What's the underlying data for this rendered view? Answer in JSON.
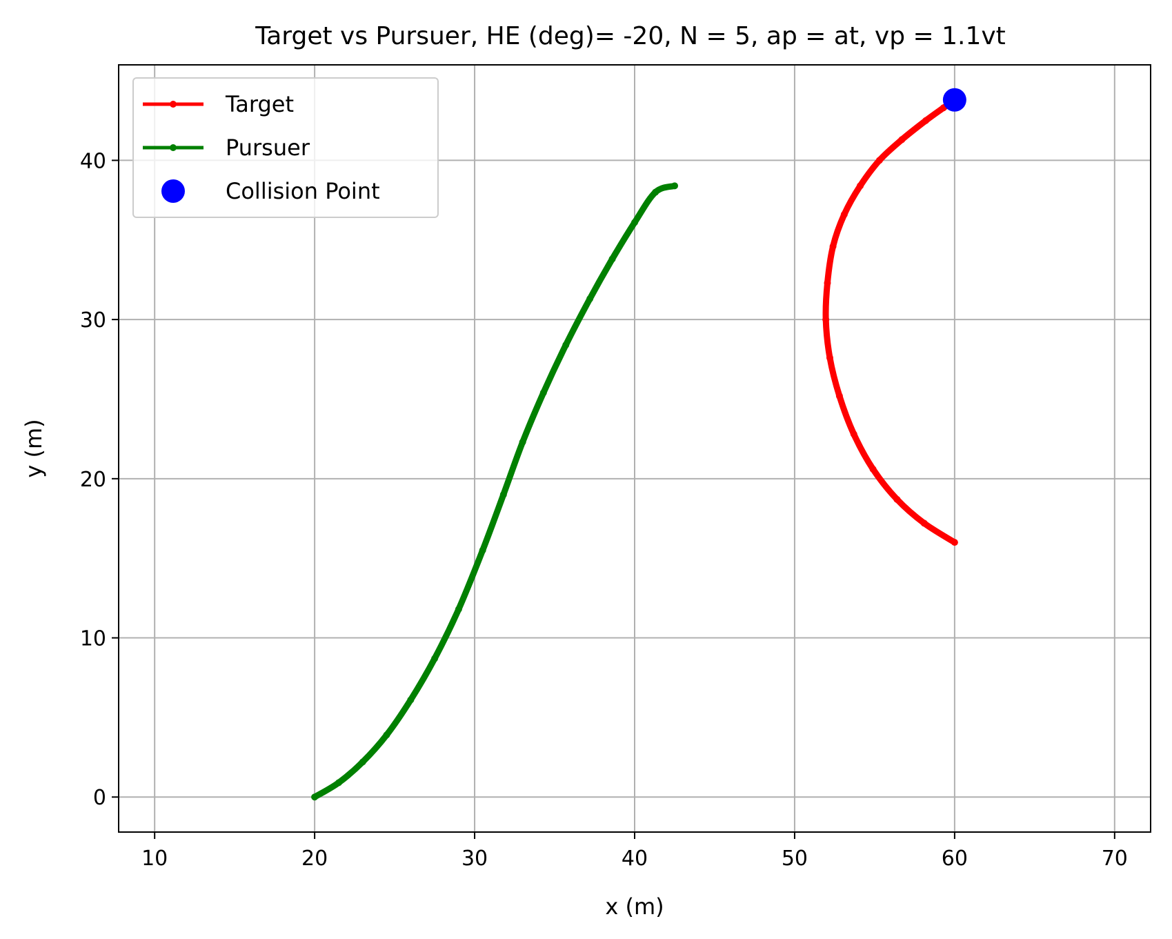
{
  "chart_data": {
    "type": "line",
    "title": "Target vs Pursuer, HE (deg)= -20, N = 5, ap = at, vp = 1.1vt",
    "xlabel": "x (m)",
    "ylabel": "y (m)",
    "xlim": [
      7.75,
      72.25
    ],
    "ylim": [
      -2.2,
      46.0
    ],
    "xticks": [
      10,
      20,
      30,
      40,
      50,
      60,
      70
    ],
    "yticks": [
      0,
      10,
      20,
      30,
      40
    ],
    "grid": true,
    "legend_position": "upper left",
    "series": [
      {
        "name": "Target",
        "color": "#ff0000",
        "marker": "point",
        "x": [
          60.0,
          58.1,
          56.4,
          54.9,
          53.7,
          52.8,
          52.2,
          51.95,
          52.05,
          52.4,
          53.1,
          54.1,
          55.3,
          56.7,
          58.2,
          59.3,
          60.0
        ],
        "y": [
          16.0,
          17.2,
          18.7,
          20.6,
          22.8,
          25.2,
          27.6,
          30.0,
          32.3,
          34.6,
          36.6,
          38.4,
          40.0,
          41.3,
          42.5,
          43.3,
          43.8
        ]
      },
      {
        "name": "Pursuer",
        "color": "#008000",
        "marker": "point",
        "x": [
          20.0,
          21.5,
          23.0,
          24.5,
          26.0,
          27.5,
          29.0,
          30.5,
          31.8,
          33.0,
          34.3,
          35.7,
          37.2,
          38.6,
          40.0,
          41.3,
          42.5
        ],
        "y": [
          0.0,
          0.9,
          2.2,
          3.9,
          6.1,
          8.7,
          11.8,
          15.5,
          19.0,
          22.3,
          25.4,
          28.4,
          31.3,
          33.8,
          36.1,
          38.0,
          38.4
        ]
      }
    ],
    "collision_point": {
      "name": "Collision Point",
      "color": "#0000ff",
      "x": 60.0,
      "y": 43.8
    }
  }
}
